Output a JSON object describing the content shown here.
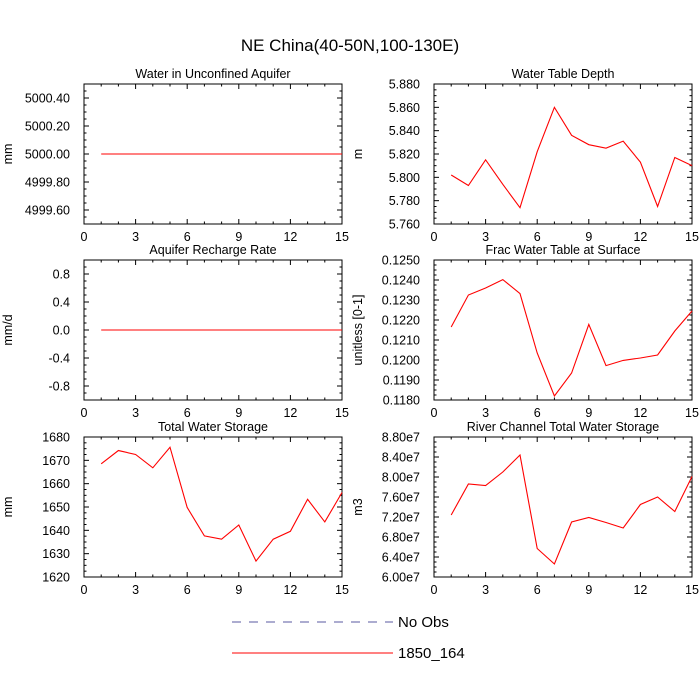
{
  "figure": {
    "title": "NE China(40-50N,100-130E)"
  },
  "legend": {
    "placement": "bottom-center",
    "items": [
      {
        "label": "No Obs",
        "color": "#5a5aa0",
        "style": "dashed"
      },
      {
        "label": "1850_164",
        "color": "#ff0000",
        "style": "solid"
      }
    ]
  },
  "chart_data": [
    {
      "type": "line",
      "title": "Water in Unconfined Aquifer",
      "xlabel": "",
      "ylabel": "mm",
      "xlim": [
        0,
        15
      ],
      "ylim": [
        4999.5,
        5000.5
      ],
      "xticks": [
        "0",
        "3",
        "6",
        "9",
        "12",
        "15"
      ],
      "xtick_values": [
        0,
        3,
        6,
        9,
        12,
        15
      ],
      "yticks": [
        "4999.60",
        "4999.80",
        "5000.00",
        "5000.20",
        "5000.40"
      ],
      "ytick_values": [
        4999.6,
        4999.8,
        5000.0,
        5000.2,
        5000.4
      ],
      "series": [
        {
          "name": "1850_164",
          "color": "#ff0000",
          "x": [
            1,
            2,
            3,
            4,
            5,
            6,
            7,
            8,
            9,
            10,
            11,
            12,
            13,
            14,
            15
          ],
          "values": [
            5000,
            5000,
            5000,
            5000,
            5000,
            5000,
            5000,
            5000,
            5000,
            5000,
            5000,
            5000,
            5000,
            5000,
            5000
          ]
        }
      ]
    },
    {
      "type": "line",
      "title": "Water Table Depth",
      "xlabel": "",
      "ylabel": "m",
      "xlim": [
        0,
        15
      ],
      "ylim": [
        5.76,
        5.88
      ],
      "xticks": [
        "0",
        "3",
        "6",
        "9",
        "12",
        "15"
      ],
      "xtick_values": [
        0,
        3,
        6,
        9,
        12,
        15
      ],
      "yticks": [
        "5.760",
        "5.780",
        "5.800",
        "5.820",
        "5.840",
        "5.860",
        "5.880"
      ],
      "ytick_values": [
        5.76,
        5.78,
        5.8,
        5.82,
        5.84,
        5.86,
        5.88
      ],
      "series": [
        {
          "name": "1850_164",
          "color": "#ff0000",
          "x": [
            1,
            2,
            3,
            4,
            5,
            6,
            7,
            8,
            9,
            10,
            11,
            12,
            13,
            14,
            15
          ],
          "values": [
            5.802,
            5.793,
            5.815,
            5.794,
            5.774,
            5.822,
            5.86,
            5.836,
            5.828,
            5.825,
            5.831,
            5.813,
            5.775,
            5.817,
            5.81
          ]
        }
      ]
    },
    {
      "type": "line",
      "title": "Aquifer Recharge Rate",
      "xlabel": "",
      "ylabel": "mm/d",
      "xlim": [
        0,
        15
      ],
      "ylim": [
        -1,
        1
      ],
      "xticks": [
        "0",
        "3",
        "6",
        "9",
        "12",
        "15"
      ],
      "xtick_values": [
        0,
        3,
        6,
        9,
        12,
        15
      ],
      "yticks": [
        "-0.8",
        "-0.4",
        "0.0",
        "0.4",
        "0.8"
      ],
      "ytick_values": [
        -0.8,
        -0.4,
        0.0,
        0.4,
        0.8
      ],
      "series": [
        {
          "name": "1850_164",
          "color": "#ff0000",
          "x": [
            1,
            2,
            3,
            4,
            5,
            6,
            7,
            8,
            9,
            10,
            11,
            12,
            13,
            14,
            15
          ],
          "values": [
            0,
            0,
            0,
            0,
            0,
            0,
            0,
            0,
            0,
            0,
            0,
            0,
            0,
            0,
            0
          ]
        }
      ]
    },
    {
      "type": "line",
      "title": "Frac Water Table at Surface",
      "xlabel": "",
      "ylabel": "unitless [0-1]",
      "xlim": [
        0,
        15
      ],
      "ylim": [
        0.118,
        0.125
      ],
      "xticks": [
        "0",
        "3",
        "6",
        "9",
        "12",
        "15"
      ],
      "xtick_values": [
        0,
        3,
        6,
        9,
        12,
        15
      ],
      "yticks": [
        "0.1180",
        "0.1190",
        "0.1200",
        "0.1210",
        "0.1220",
        "0.1230",
        "0.1240",
        "0.1250"
      ],
      "ytick_values": [
        0.118,
        0.119,
        0.12,
        0.121,
        0.122,
        0.123,
        0.124,
        0.125
      ],
      "series": [
        {
          "name": "1850_164",
          "color": "#ff0000",
          "x": [
            1,
            2,
            3,
            4,
            5,
            6,
            7,
            8,
            9,
            10,
            11,
            12,
            13,
            14,
            15
          ],
          "values": [
            0.12165,
            0.12325,
            0.1236,
            0.12402,
            0.12332,
            0.12035,
            0.1182,
            0.11935,
            0.12178,
            0.11972,
            0.11998,
            0.1201,
            0.12025,
            0.12145,
            0.12245
          ]
        }
      ]
    },
    {
      "type": "line",
      "title": "Total Water Storage",
      "xlabel": "",
      "ylabel": "mm",
      "xlim": [
        0,
        15
      ],
      "ylim": [
        1620,
        1680
      ],
      "xticks": [
        "0",
        "3",
        "6",
        "9",
        "12",
        "15"
      ],
      "xtick_values": [
        0,
        3,
        6,
        9,
        12,
        15
      ],
      "yticks": [
        "1620",
        "1630",
        "1640",
        "1650",
        "1660",
        "1670",
        "1680"
      ],
      "ytick_values": [
        1620,
        1630,
        1640,
        1650,
        1660,
        1670,
        1680
      ],
      "series": [
        {
          "name": "1850_164",
          "color": "#ff0000",
          "x": [
            1,
            2,
            3,
            4,
            5,
            6,
            7,
            8,
            9,
            10,
            11,
            12,
            13,
            14,
            15
          ],
          "values": [
            1668.5,
            1674.2,
            1672.5,
            1666.8,
            1675.6,
            1649.8,
            1637.6,
            1636.2,
            1642.3,
            1626.8,
            1636.2,
            1639.6,
            1653.3,
            1643.6,
            1656.2
          ]
        }
      ]
    },
    {
      "type": "line",
      "title": "River Channel Total Water Storage",
      "xlabel": "",
      "ylabel": "m3",
      "xlim": [
        0,
        15
      ],
      "ylim": [
        60000000,
        88000000
      ],
      "xticks": [
        "0",
        "3",
        "6",
        "9",
        "12",
        "15"
      ],
      "xtick_values": [
        0,
        3,
        6,
        9,
        12,
        15
      ],
      "yticks": [
        "6.00e7",
        "6.40e7",
        "6.80e7",
        "7.20e7",
        "7.60e7",
        "8.00e7",
        "8.40e7",
        "8.80e7"
      ],
      "ytick_values": [
        60000000,
        64000000,
        68000000,
        72000000,
        76000000,
        80000000,
        84000000,
        88000000
      ],
      "series": [
        {
          "name": "1850_164",
          "color": "#ff0000",
          "x": [
            1,
            2,
            3,
            4,
            5,
            6,
            7,
            8,
            9,
            10,
            11,
            12,
            13,
            14,
            15
          ],
          "values": [
            72400000,
            78600000,
            78300000,
            81000000,
            84400000,
            65700000,
            62600000,
            71000000,
            71900000,
            70900000,
            69800000,
            74500000,
            76000000,
            73100000,
            80100000
          ]
        }
      ]
    }
  ]
}
